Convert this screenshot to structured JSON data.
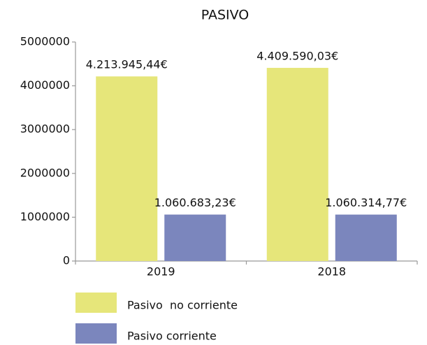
{
  "chart_data": {
    "type": "bar",
    "title": "PASIVO",
    "categories": [
      "2019",
      "2018"
    ],
    "series": [
      {
        "name": "Pasivo  no corriente",
        "color": "#e6e67a",
        "values": [
          4213945.44,
          4409590.03
        ],
        "value_labels": [
          "4.213.945,44€",
          "4.409.590,03€"
        ]
      },
      {
        "name": "Pasivo corriente",
        "color": "#7b86bd",
        "values": [
          1060683.23,
          1060314.77
        ],
        "value_labels": [
          "1.060.683,23€",
          "1.060.314,77€"
        ]
      }
    ],
    "ylim": [
      0,
      5000000
    ],
    "yticks": [
      0,
      1000000,
      2000000,
      3000000,
      4000000,
      5000000
    ],
    "grid": false,
    "legend": "bottom"
  }
}
